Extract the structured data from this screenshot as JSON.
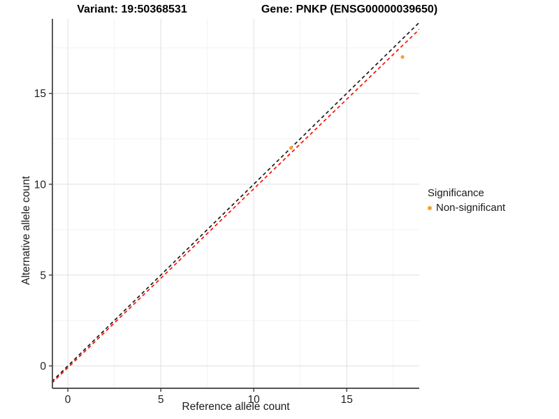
{
  "chart_data": {
    "type": "scatter",
    "title_left": "Variant: 19:50368531",
    "title_right": "Gene: PNKP (ENSG00000039650)",
    "xlabel": "Reference allele count",
    "ylabel": "Alternative allele count",
    "x_ticks": [
      0,
      5,
      10,
      15
    ],
    "y_ticks": [
      0,
      5,
      10,
      15
    ],
    "x_minor_ticks": [
      2.5,
      7.5,
      12.5,
      17.5
    ],
    "y_minor_ticks": [
      2.5,
      7.5,
      12.5,
      17.5
    ],
    "xlim": [
      -0.83,
      18.9
    ],
    "ylim": [
      -1.23,
      19.1
    ],
    "grid": true,
    "legend_position": "right",
    "points": [
      {
        "x": 12,
        "y": 12,
        "significance": "Non-significant"
      },
      {
        "x": 18,
        "y": 17,
        "significance": "Non-significant"
      }
    ],
    "point_color": "#f8a12c",
    "lines": [
      {
        "name": "identity-line",
        "slope": 1,
        "intercept": 0,
        "color": "#1a1a1a",
        "dashed": true
      },
      {
        "name": "fit-line",
        "slope": 0.985,
        "intercept": -0.1,
        "color": "#fb0f00",
        "dashed": true
      }
    ],
    "legend": {
      "title": "Significance",
      "items": [
        {
          "label": "Non-significant",
          "color": "#f8a12c"
        }
      ]
    },
    "colors": {
      "grid_major": "#e4e4e4",
      "grid_minor": "#f2f2f2",
      "axis_line": "#3c3c3c",
      "tick_text": "#1f1f1f"
    }
  }
}
